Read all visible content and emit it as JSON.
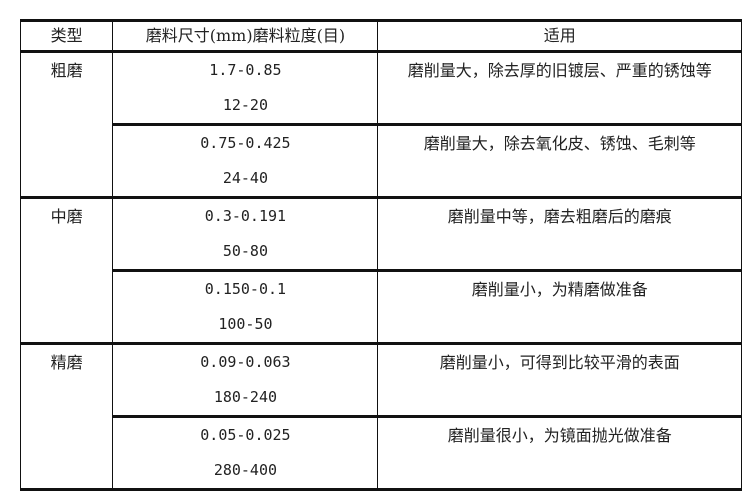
{
  "headers": [
    "类型",
    "磨料尺寸(mm)磨料粒度(目)",
    "适用"
  ],
  "groups": [
    {
      "type": "粗磨",
      "rows": [
        {
          "size": "1.7-0.85",
          "grit": "12-20",
          "use": "磨削量大，除去厚的旧镀层、严重的锈蚀等"
        },
        {
          "size": "0.75-0.425",
          "grit": "24-40",
          "use": "磨削量大，除去氧化皮、锈蚀、毛刺等"
        }
      ]
    },
    {
      "type": "中磨",
      "rows": [
        {
          "size": "0.3-0.191",
          "grit": "50-80",
          "use": "磨削量中等，磨去粗磨后的磨痕"
        },
        {
          "size": "0.150-0.1",
          "grit": "100-50",
          "use": "磨削量小，为精磨做准备"
        }
      ]
    },
    {
      "type": "精磨",
      "rows": [
        {
          "size": "0.09-0.063",
          "grit": "180-240",
          "use": "磨削量小，可得到比较平滑的表面"
        },
        {
          "size": "0.05-0.025",
          "grit": "280-400",
          "use": "磨削量很小，为镜面抛光做准备"
        }
      ]
    }
  ]
}
